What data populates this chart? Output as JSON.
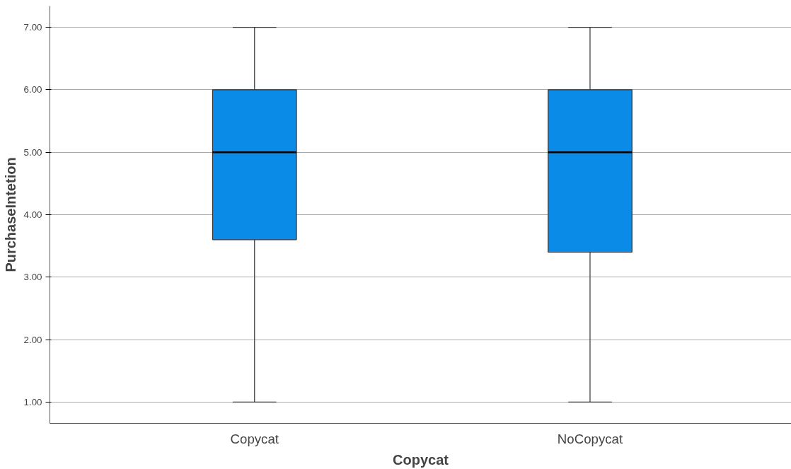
{
  "chart_data": {
    "type": "box",
    "xlabel": "Copycat",
    "ylabel": "PurchaseIntetion",
    "categories": [
      "Copycat",
      "NoCopycat"
    ],
    "series": [
      {
        "color": "#0b8be8",
        "boxes": [
          {
            "low": 1.0,
            "q1": 3.6,
            "median": 5.0,
            "q3": 6.0,
            "high": 7.0
          },
          {
            "low": 1.0,
            "q1": 3.4,
            "median": 5.0,
            "q3": 6.0,
            "high": 7.0
          }
        ]
      }
    ],
    "ylim": [
      0.66,
      7.34
    ],
    "yticks": [
      {
        "value": 1,
        "label": "1.00"
      },
      {
        "value": 2,
        "label": "2.00"
      },
      {
        "value": 3,
        "label": "3.00"
      },
      {
        "value": 4,
        "label": "4.00"
      },
      {
        "value": 5,
        "label": "5.00"
      },
      {
        "value": 6,
        "label": "6.00"
      },
      {
        "value": 7,
        "label": "7.00"
      }
    ],
    "grid": "y"
  }
}
